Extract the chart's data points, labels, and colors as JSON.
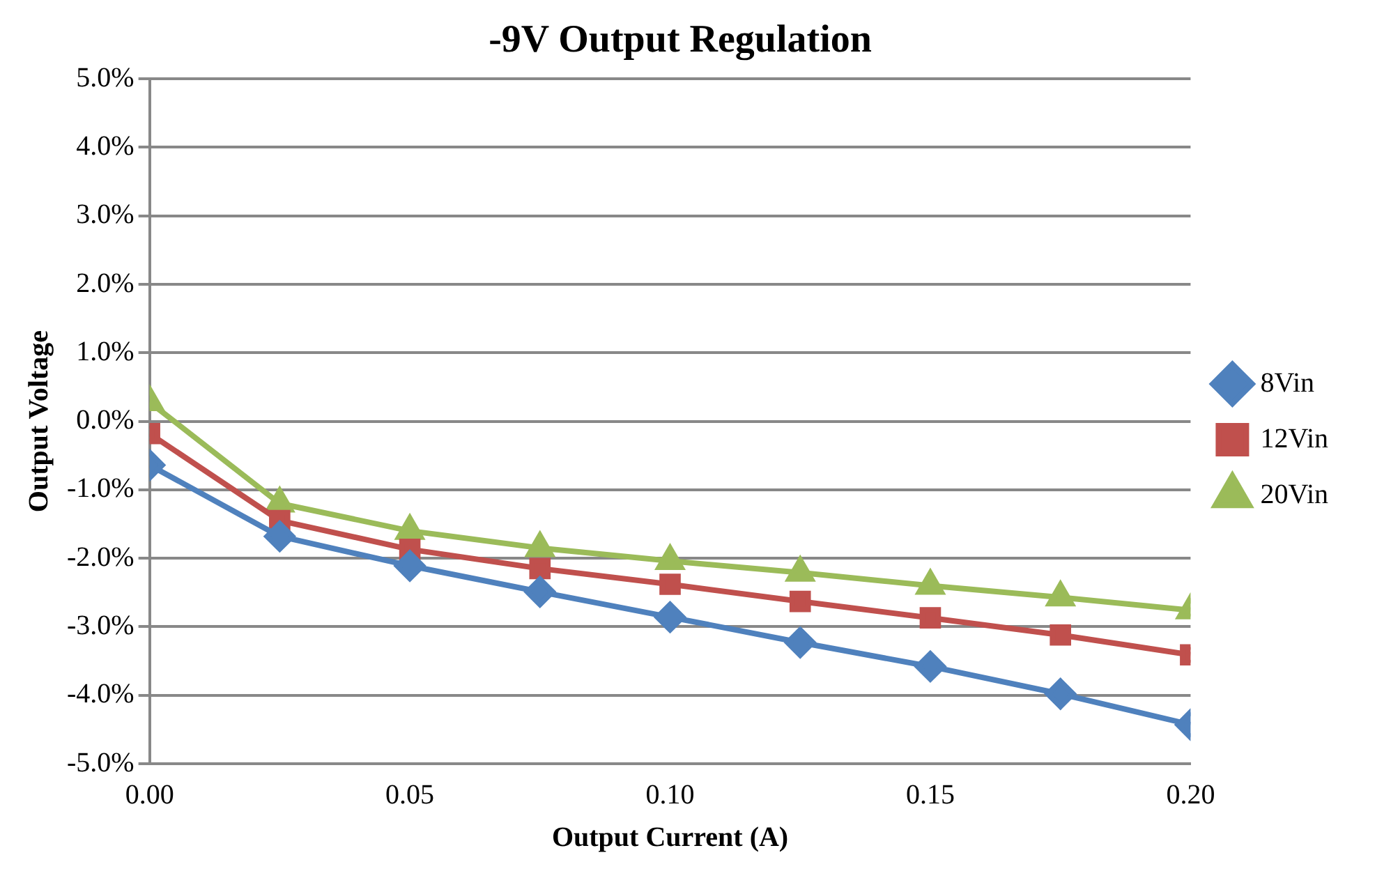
{
  "chart_data": {
    "type": "line",
    "title": "-9V Output Regulation",
    "xlabel": "Output Current (A)",
    "ylabel": "Output Voltage",
    "x": [
      0,
      0.025,
      0.05,
      0.075,
      0.1,
      0.125,
      0.15,
      0.175,
      0.2
    ],
    "series": [
      {
        "name": "8Vin",
        "color": "#4f81bd",
        "marker": "diamond",
        "values": [
          -0.64,
          -1.68,
          -2.11,
          -2.49,
          -2.86,
          -3.23,
          -3.58,
          -3.98,
          -4.43
        ]
      },
      {
        "name": "12Vin",
        "color": "#c0504d",
        "marker": "square",
        "values": [
          -0.18,
          -1.45,
          -1.87,
          -2.15,
          -2.38,
          -2.63,
          -2.87,
          -3.12,
          -3.41
        ]
      },
      {
        "name": "20Vin",
        "color": "#9bbb59",
        "marker": "triangle",
        "values": [
          0.28,
          -1.2,
          -1.6,
          -1.85,
          -2.04,
          -2.21,
          -2.4,
          -2.57,
          -2.76
        ]
      }
    ],
    "xlim": [
      0,
      0.2
    ],
    "xticks": [
      {
        "value": 0,
        "label": "0.00"
      },
      {
        "value": 0.05,
        "label": "0.05"
      },
      {
        "value": 0.1,
        "label": "0.10"
      },
      {
        "value": 0.15,
        "label": "0.15"
      },
      {
        "value": 0.2,
        "label": "0.20"
      }
    ],
    "ylim": [
      -5,
      5
    ],
    "yticks": [
      {
        "value": -5,
        "label": "-5.0%"
      },
      {
        "value": -4,
        "label": "-4.0%"
      },
      {
        "value": -3,
        "label": "-3.0%"
      },
      {
        "value": -2,
        "label": "-2.0%"
      },
      {
        "value": -1,
        "label": "-1.0%"
      },
      {
        "value": 0,
        "label": "0.0%"
      },
      {
        "value": 1,
        "label": "1.0%"
      },
      {
        "value": 2,
        "label": "2.0%"
      },
      {
        "value": 3,
        "label": "3.0%"
      },
      {
        "value": 4,
        "label": "4.0%"
      },
      {
        "value": 5,
        "label": "5.0%"
      }
    ],
    "grid": "y",
    "legend": "right",
    "line_style": "solid"
  }
}
